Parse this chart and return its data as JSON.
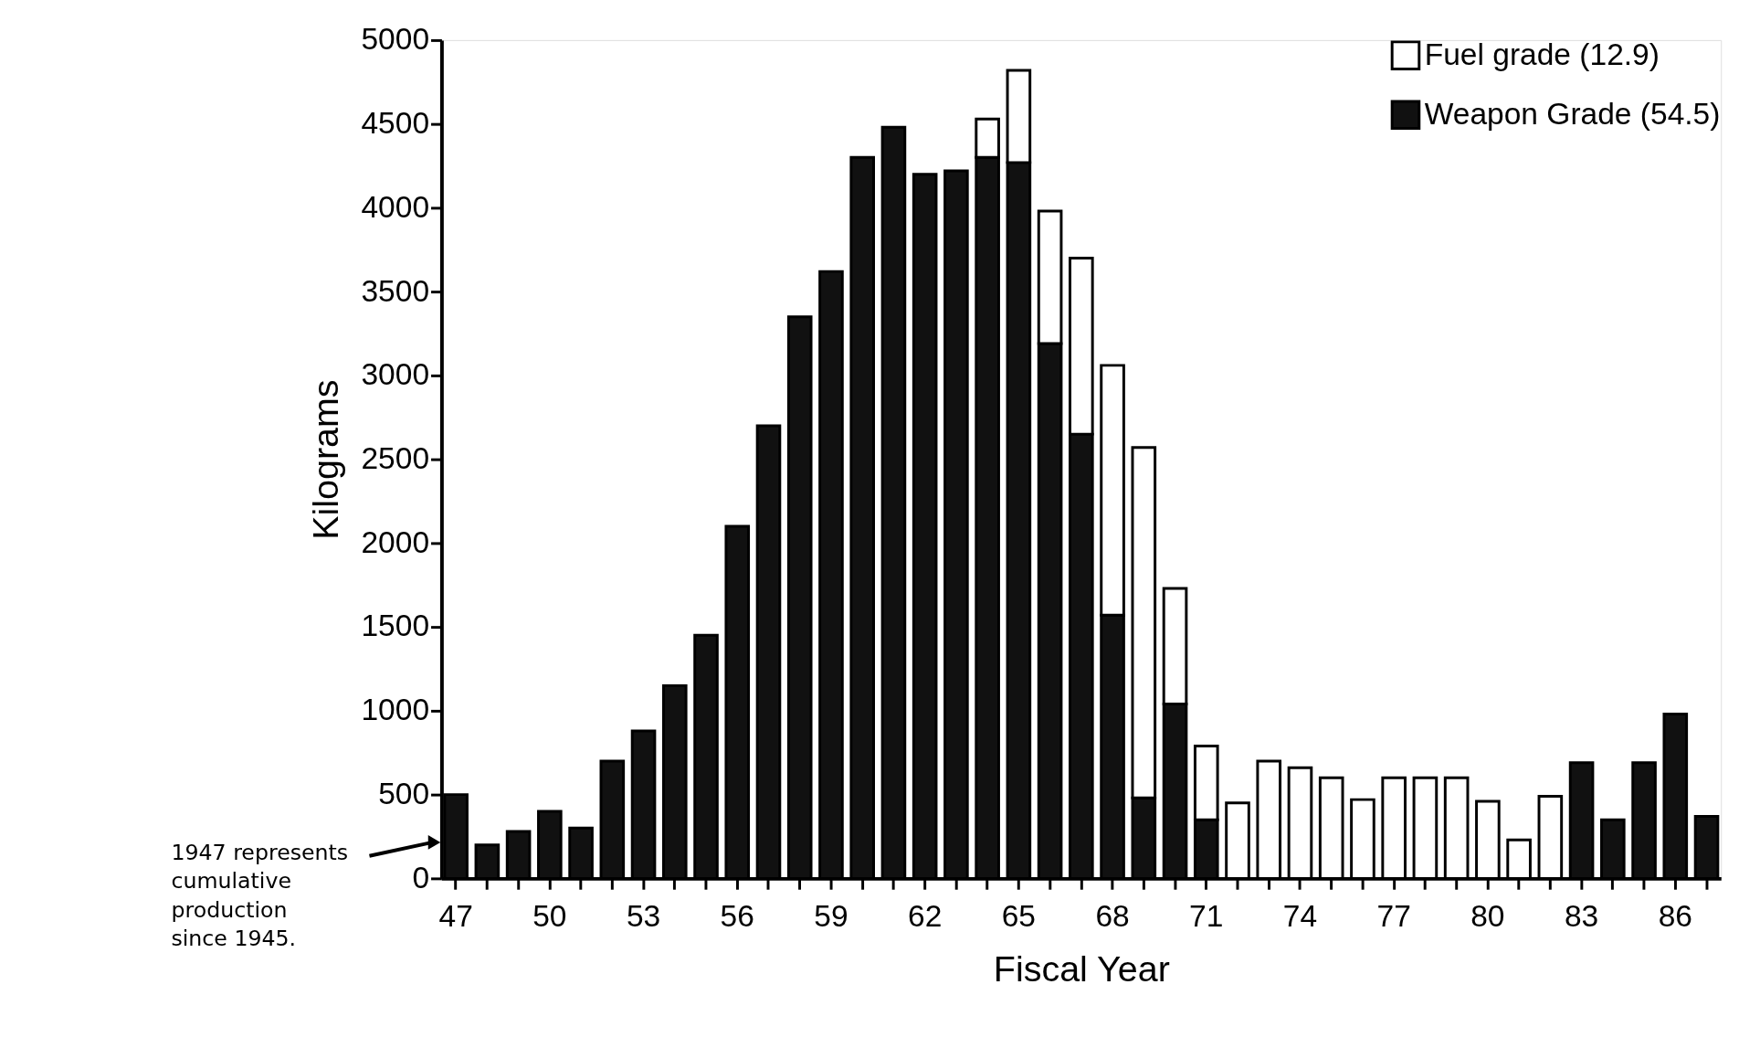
{
  "chart_data": {
    "type": "bar",
    "stacked": true,
    "xlabel": "Fiscal Year",
    "ylabel": "Kilograms",
    "categories": [
      "47",
      null,
      null,
      "50",
      null,
      null,
      "53",
      null,
      null,
      "56",
      null,
      null,
      "59",
      null,
      null,
      "62",
      null,
      null,
      "65",
      null,
      null,
      "68",
      null,
      null,
      "71",
      null,
      null,
      "74",
      null,
      null,
      "77",
      null,
      null,
      "80",
      null,
      null,
      "83",
      null,
      null,
      "86",
      null
    ],
    "series": [
      {
        "name": "Weapon Grade (54.5)",
        "color": "#111111",
        "values": [
          500,
          200,
          280,
          400,
          300,
          700,
          880,
          1150,
          1450,
          2100,
          2700,
          3350,
          3620,
          4300,
          4480,
          4200,
          4220,
          4300,
          4270,
          3190,
          2650,
          1570,
          480,
          1040,
          350,
          null,
          null,
          null,
          null,
          null,
          null,
          null,
          null,
          null,
          null,
          null,
          690,
          350,
          690,
          980,
          370
        ]
      },
      {
        "name": "Fuel grade (12.9)",
        "color": "#ffffff",
        "values": [
          null,
          null,
          null,
          null,
          null,
          null,
          null,
          null,
          null,
          null,
          null,
          null,
          null,
          null,
          null,
          null,
          null,
          230,
          550,
          790,
          1050,
          1490,
          2090,
          690,
          440,
          450,
          700,
          660,
          600,
          470,
          600,
          600,
          600,
          460,
          230,
          490,
          null,
          null,
          null,
          null,
          null
        ]
      }
    ],
    "ylim": [
      0,
      5000
    ],
    "yticks": [
      0,
      500,
      1000,
      1500,
      2000,
      2500,
      3000,
      3500,
      4000,
      4500,
      5000
    ],
    "grid": false,
    "legend": "top right",
    "annotations": [
      "1947 represents cumulative production since 1945."
    ]
  }
}
